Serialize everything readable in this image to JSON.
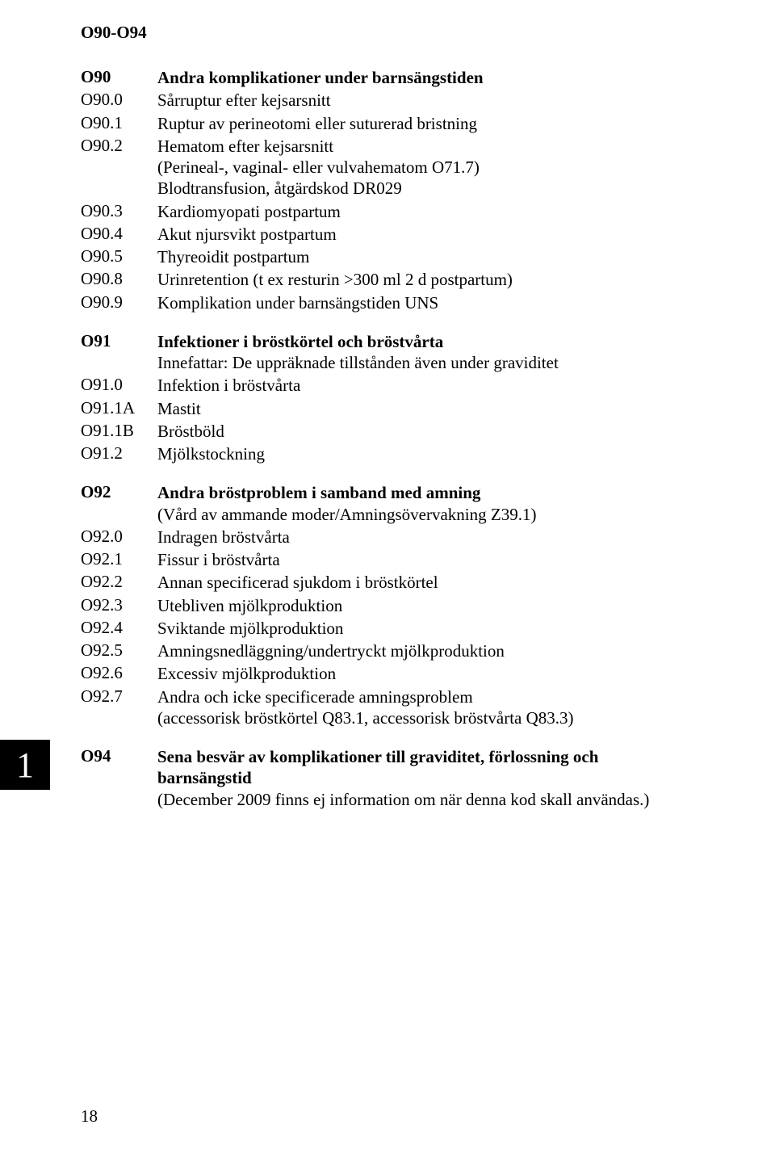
{
  "header": "O90-O94",
  "tab_label": "1",
  "page_number": "18",
  "blocks": [
    {
      "gap": false,
      "rows": [
        {
          "code": "O90",
          "code_bold": true,
          "lines": [
            {
              "text": "Andra komplikationer under barnsängstiden",
              "bold": true
            }
          ]
        },
        {
          "code": "O90.0",
          "code_bold": false,
          "lines": [
            {
              "text": "Sårruptur efter kejsarsnitt",
              "bold": false
            }
          ]
        },
        {
          "code": "O90.1",
          "code_bold": false,
          "lines": [
            {
              "text": "Ruptur av perineotomi eller suturerad bristning",
              "bold": false
            }
          ]
        },
        {
          "code": "O90.2",
          "code_bold": false,
          "lines": [
            {
              "text": "Hematom efter kejsarsnitt",
              "bold": false
            },
            {
              "text": "(Perineal-, vaginal- eller vulvahematom O71.7)",
              "bold": false
            },
            {
              "text": "Blodtransfusion, åtgärdskod DR029",
              "bold": false
            }
          ]
        },
        {
          "code": "O90.3",
          "code_bold": false,
          "lines": [
            {
              "text": "Kardiomyopati postpartum",
              "bold": false
            }
          ]
        },
        {
          "code": "O90.4",
          "code_bold": false,
          "lines": [
            {
              "text": "Akut njursvikt postpartum",
              "bold": false
            }
          ]
        },
        {
          "code": "O90.5",
          "code_bold": false,
          "lines": [
            {
              "text": "Thyreoidit postpartum",
              "bold": false
            }
          ]
        },
        {
          "code": "O90.8",
          "code_bold": false,
          "lines": [
            {
              "text": "Urinretention (t ex resturin >300 ml 2 d postpartum)",
              "bold": false
            }
          ]
        },
        {
          "code": "O90.9",
          "code_bold": false,
          "lines": [
            {
              "text": "Komplikation under barnsängstiden UNS",
              "bold": false
            }
          ]
        }
      ]
    },
    {
      "gap": true,
      "rows": [
        {
          "code": "O91",
          "code_bold": true,
          "lines": [
            {
              "text": "Infektioner i bröstkörtel och bröstvårta",
              "bold": true
            },
            {
              "text": "Innefattar: De uppräknade tillstånden även under graviditet",
              "bold": false
            }
          ]
        },
        {
          "code": "O91.0",
          "code_bold": false,
          "lines": [
            {
              "text": "Infektion i bröstvårta",
              "bold": false
            }
          ]
        },
        {
          "code": "O91.1A",
          "code_bold": false,
          "lines": [
            {
              "text": "Mastit",
              "bold": false
            }
          ]
        },
        {
          "code": "O91.1B",
          "code_bold": false,
          "lines": [
            {
              "text": "Bröstböld",
              "bold": false
            }
          ]
        },
        {
          "code": "O91.2",
          "code_bold": false,
          "lines": [
            {
              "text": "Mjölkstockning",
              "bold": false
            }
          ]
        }
      ]
    },
    {
      "gap": true,
      "rows": [
        {
          "code": "O92",
          "code_bold": true,
          "lines": [
            {
              "text": "Andra bröstproblem i samband med amning",
              "bold": true
            },
            {
              "text": "(Vård av ammande moder/Amningsövervakning Z39.1)",
              "bold": false
            }
          ]
        },
        {
          "code": "O92.0",
          "code_bold": false,
          "lines": [
            {
              "text": "Indragen bröstvårta",
              "bold": false
            }
          ]
        },
        {
          "code": "O92.1",
          "code_bold": false,
          "lines": [
            {
              "text": "Fissur i bröstvårta",
              "bold": false
            }
          ]
        },
        {
          "code": "O92.2",
          "code_bold": false,
          "lines": [
            {
              "text": "Annan specificerad sjukdom i bröstkörtel",
              "bold": false
            }
          ]
        },
        {
          "code": "O92.3",
          "code_bold": false,
          "lines": [
            {
              "text": "Utebliven mjölkproduktion",
              "bold": false
            }
          ]
        },
        {
          "code": "O92.4",
          "code_bold": false,
          "lines": [
            {
              "text": "Sviktande mjölkproduktion",
              "bold": false
            }
          ]
        },
        {
          "code": "O92.5",
          "code_bold": false,
          "lines": [
            {
              "text": "Amningsnedläggning/undertryckt mjölkproduktion",
              "bold": false
            }
          ]
        },
        {
          "code": "O92.6",
          "code_bold": false,
          "lines": [
            {
              "text": "Excessiv mjölkproduktion",
              "bold": false
            }
          ]
        },
        {
          "code": "O92.7",
          "code_bold": false,
          "lines": [
            {
              "text": "Andra och icke specificerade amningsproblem",
              "bold": false
            },
            {
              "text": "(accessorisk bröstkörtel Q83.1, accessorisk bröstvårta Q83.3)",
              "bold": false
            }
          ]
        }
      ]
    },
    {
      "gap": true,
      "rows": [
        {
          "code": "O94",
          "code_bold": true,
          "lines": [
            {
              "text": "Sena besvär av komplikationer till graviditet, förlossning och barnsängstid",
              "bold": true
            },
            {
              "text": "(December 2009 finns ej information om när denna kod skall användas.)",
              "bold": false
            }
          ]
        }
      ]
    }
  ]
}
